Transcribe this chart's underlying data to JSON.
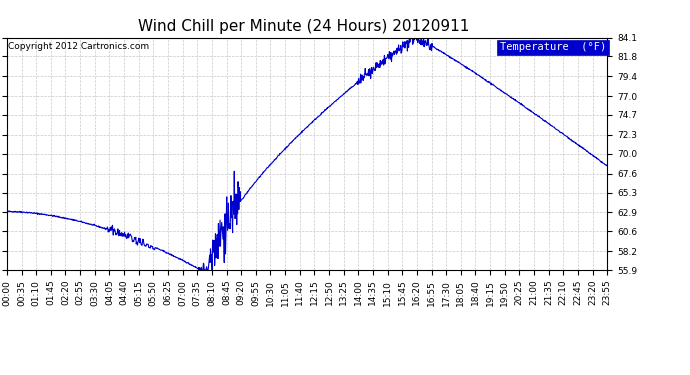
{
  "title": "Wind Chill per Minute (24 Hours) 20120911",
  "copyright": "Copyright 2012 Cartronics.com",
  "legend_label": "Temperature  (°F)",
  "line_color": "#0000CC",
  "background_color": "#FFFFFF",
  "plot_background": "#FFFFFF",
  "grid_color": "#BBBBBB",
  "yticks": [
    55.9,
    58.2,
    60.6,
    62.9,
    65.3,
    67.6,
    70.0,
    72.3,
    74.7,
    77.0,
    79.4,
    81.8,
    84.1
  ],
  "ymin": 55.9,
  "ymax": 84.1,
  "xtick_labels": [
    "00:00",
    "00:35",
    "01:10",
    "01:45",
    "02:20",
    "02:55",
    "03:30",
    "04:05",
    "04:40",
    "05:15",
    "05:50",
    "06:25",
    "07:00",
    "07:35",
    "08:10",
    "08:45",
    "09:20",
    "09:55",
    "10:30",
    "11:05",
    "11:40",
    "12:15",
    "12:50",
    "13:25",
    "14:00",
    "14:35",
    "15:10",
    "15:45",
    "16:20",
    "16:55",
    "17:30",
    "18:05",
    "18:40",
    "19:15",
    "19:50",
    "20:25",
    "21:00",
    "21:35",
    "22:10",
    "22:45",
    "23:20",
    "23:55"
  ],
  "num_minutes": 1440,
  "title_fontsize": 11,
  "copyright_fontsize": 6.5,
  "legend_fontsize": 7.5,
  "tick_fontsize": 6.5,
  "figwidth": 6.9,
  "figheight": 3.75,
  "dpi": 100
}
